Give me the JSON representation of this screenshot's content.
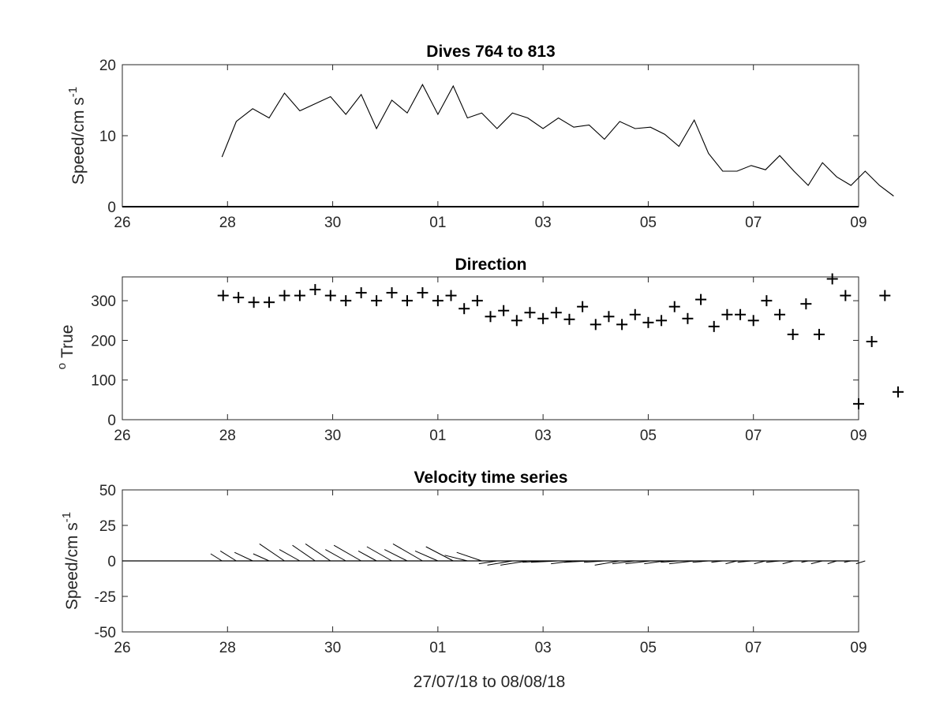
{
  "chart_data": [
    {
      "type": "line",
      "title": "Dives 764 to 813",
      "ylabel": "Speed/cm s",
      "ylabel_superscript": "-1",
      "ylim": [
        0,
        20
      ],
      "yticks": [
        0,
        10,
        20
      ],
      "xlim": [
        "2018-07-26",
        "2018-08-09"
      ],
      "xticks": [
        "2018-07-26",
        "2018-07-28",
        "2018-07-30",
        "2018-08-01",
        "2018-08-03",
        "2018-08-05",
        "2018-08-07",
        "2018-08-09"
      ],
      "xticklabels": [
        "26",
        "28",
        "30",
        "01",
        "03",
        "05",
        "07",
        "09"
      ],
      "series": [
        {
          "x": [
            "2018-07-27T21:30",
            "2018-07-28T04:00",
            "2018-07-28T11:30",
            "2018-07-28T19:00",
            "2018-07-29T02:00",
            "2018-07-29T09:00",
            "2018-07-29T16:00",
            "2018-07-29T23:00",
            "2018-07-30T06:00",
            "2018-07-30T13:00",
            "2018-07-30T20:00",
            "2018-07-31T03:00",
            "2018-07-31T10:00",
            "2018-07-31T17:00",
            "2018-08-01T00:00",
            "2018-08-01T07:00",
            "2018-08-01T13:30",
            "2018-08-01T20:00",
            "2018-08-02T03:00",
            "2018-08-02T10:00",
            "2018-08-02T17:00",
            "2018-08-03T00:00",
            "2018-08-03T07:00",
            "2018-08-03T14:00",
            "2018-08-03T21:00",
            "2018-08-04T04:00",
            "2018-08-04T11:00",
            "2018-08-04T18:00",
            "2018-08-05T01:00",
            "2018-08-05T07:30",
            "2018-08-05T14:00",
            "2018-08-05T21:00",
            "2018-08-06T03:30",
            "2018-08-06T10:00",
            "2018-08-06T16:30",
            "2018-08-06T23:00",
            "2018-08-07T05:30",
            "2018-08-07T12:00",
            "2018-08-07T18:30",
            "2018-08-08T01:00",
            "2018-08-08T07:30",
            "2018-08-08T14:00",
            "2018-08-08T20:30",
            "2018-08-09T03:00",
            "2018-08-09T09:30",
            "2018-08-09T16:00"
          ],
          "y": [
            7.0,
            12.0,
            13.8,
            12.5,
            16.0,
            13.5,
            14.5,
            15.5,
            13.0,
            15.8,
            11.0,
            15.0,
            13.2,
            17.2,
            13.0,
            17.0,
            12.5,
            13.2,
            11.0,
            13.2,
            12.5,
            11.0,
            12.5,
            11.2,
            11.5,
            9.5,
            12.0,
            11.0,
            11.2,
            10.2,
            8.5,
            12.2,
            7.5,
            5.0,
            5.0,
            5.8,
            5.2,
            7.2,
            5.0,
            3.0,
            6.2,
            4.2,
            3.0,
            5.0,
            3.0,
            1.5
          ]
        }
      ]
    },
    {
      "type": "scatter",
      "title": "Direction",
      "ylabel": "True",
      "ylabel_prefix": "o",
      "ylim": [
        0,
        360
      ],
      "yticks": [
        0,
        100,
        200,
        300
      ],
      "xlim": [
        "2018-07-26",
        "2018-08-09"
      ],
      "xticks": [
        "2018-07-26",
        "2018-07-28",
        "2018-07-30",
        "2018-08-01",
        "2018-08-03",
        "2018-08-05",
        "2018-08-07",
        "2018-08-09"
      ],
      "xticklabels": [
        "26",
        "28",
        "30",
        "01",
        "03",
        "05",
        "07",
        "09"
      ],
      "marker": "+",
      "series": [
        {
          "x": [
            "2018-07-27T22:00",
            "2018-07-28T05:00",
            "2018-07-28T12:00",
            "2018-07-28T19:00",
            "2018-07-29T02:00",
            "2018-07-29T09:00",
            "2018-07-29T16:00",
            "2018-07-29T23:00",
            "2018-07-30T06:00",
            "2018-07-30T13:00",
            "2018-07-30T20:00",
            "2018-07-31T03:00",
            "2018-07-31T10:00",
            "2018-07-31T17:00",
            "2018-08-01T00:00",
            "2018-08-01T06:00",
            "2018-08-01T12:00",
            "2018-08-01T18:00",
            "2018-08-02T00:00",
            "2018-08-02T06:00",
            "2018-08-02T12:00",
            "2018-08-02T18:00",
            "2018-08-03T00:00",
            "2018-08-03T06:00",
            "2018-08-03T12:00",
            "2018-08-03T18:00",
            "2018-08-04T00:00",
            "2018-08-04T06:00",
            "2018-08-04T12:00",
            "2018-08-04T18:00",
            "2018-08-05T00:00",
            "2018-08-05T06:00",
            "2018-08-05T12:00",
            "2018-08-05T18:00",
            "2018-08-06T00:00",
            "2018-08-06T06:00",
            "2018-08-06T12:00",
            "2018-08-06T18:00",
            "2018-08-07T00:00",
            "2018-08-07T06:00",
            "2018-08-07T12:00",
            "2018-08-07T18:00",
            "2018-08-08T00:00",
            "2018-08-08T06:00",
            "2018-08-08T12:00",
            "2018-08-08T18:00",
            "2018-08-09T00:00",
            "2018-08-09T06:00",
            "2018-08-09T12:00",
            "2018-08-09T18:00"
          ],
          "y": [
            313,
            308,
            296,
            296,
            313,
            313,
            328,
            313,
            300,
            320,
            300,
            320,
            300,
            320,
            300,
            313,
            280,
            300,
            260,
            275,
            250,
            270,
            255,
            270,
            253,
            285,
            240,
            260,
            240,
            265,
            245,
            250,
            285,
            255,
            303,
            235,
            265,
            265,
            250,
            300,
            265,
            215,
            292,
            215,
            355,
            313,
            40,
            197,
            313,
            70
          ]
        }
      ]
    },
    {
      "type": "quiver",
      "title": "Velocity time series",
      "ylabel": "Speed/cm s",
      "ylabel_superscript": "-1",
      "xlabel": "27/07/18 to 08/08/18",
      "ylim": [
        -50,
        50
      ],
      "yticks": [
        -50,
        -25,
        0,
        25,
        50
      ],
      "xlim": [
        "2018-07-26",
        "2018-08-09"
      ],
      "xticks": [
        "2018-07-26",
        "2018-07-28",
        "2018-07-30",
        "2018-08-01",
        "2018-08-03",
        "2018-08-05",
        "2018-08-07",
        "2018-08-09"
      ],
      "xticklabels": [
        "26",
        "28",
        "30",
        "01",
        "03",
        "05",
        "07",
        "09"
      ],
      "series": [
        {
          "x": [
            "2018-07-27T21:30",
            "2018-07-28T04:00",
            "2018-07-28T11:30",
            "2018-07-28T19:00",
            "2018-07-29T02:00",
            "2018-07-29T09:00",
            "2018-07-29T16:00",
            "2018-07-29T23:00",
            "2018-07-30T06:00",
            "2018-07-30T13:00",
            "2018-07-30T20:00",
            "2018-07-31T03:00",
            "2018-07-31T10:00",
            "2018-07-31T17:00",
            "2018-08-01T00:00",
            "2018-08-01T07:00",
            "2018-08-01T13:30",
            "2018-08-01T20:00",
            "2018-08-02T03:00",
            "2018-08-02T10:00",
            "2018-08-02T17:00",
            "2018-08-03T00:00",
            "2018-08-03T07:00",
            "2018-08-03T14:00",
            "2018-08-03T21:00",
            "2018-08-04T04:00",
            "2018-08-04T11:00",
            "2018-08-04T18:00",
            "2018-08-05T01:00",
            "2018-08-05T07:30",
            "2018-08-05T14:00",
            "2018-08-05T21:00",
            "2018-08-06T03:30",
            "2018-08-06T10:00",
            "2018-08-06T16:30",
            "2018-08-06T23:00",
            "2018-08-07T05:30",
            "2018-08-07T12:00",
            "2018-08-07T18:30",
            "2018-08-08T01:00",
            "2018-08-08T07:30",
            "2018-08-08T14:00",
            "2018-08-08T20:30",
            "2018-08-09T03:00"
          ],
          "u": [
            -5,
            -7,
            -8,
            -7,
            -11,
            -9,
            -10,
            -11,
            -9,
            -12,
            -8,
            -11,
            -10,
            -13,
            -10,
            -12,
            -10,
            -11,
            -8,
            -11,
            -12,
            -9,
            -12,
            -10,
            -11,
            -9,
            -11,
            -10,
            -11,
            -9,
            -8,
            -11,
            -7,
            -5,
            -5,
            -6,
            -5,
            -6,
            -5,
            -3,
            -5,
            -4,
            -3,
            -4
          ],
          "v": [
            5,
            7,
            6,
            5,
            12,
            8,
            11,
            12,
            8,
            11,
            7,
            10,
            8,
            12,
            7,
            10,
            4,
            6,
            -2,
            -3,
            -3,
            -1,
            -1,
            -2,
            -1,
            -1,
            -3,
            -2,
            -2,
            -2,
            -1,
            -2,
            -1,
            -1,
            -2,
            -1,
            -2,
            -1,
            -2,
            -1,
            -2,
            -2,
            -1,
            -2
          ]
        }
      ]
    }
  ]
}
